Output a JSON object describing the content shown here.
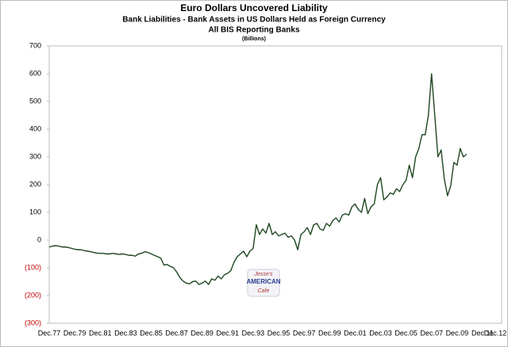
{
  "chart_data": {
    "type": "line",
    "title": "Euro Dollars Uncovered Liability",
    "subtitle": "Bank Liabilities  - Bank Assets in US Dollars Held as Foreign Currency",
    "subtitle2": "All BIS Reporting Banks",
    "units": "(Billions)",
    "watermark": [
      "Jesse's",
      "AMERICAN",
      "Cafe"
    ],
    "categories": [
      "Dec.77",
      null,
      null,
      null,
      null,
      null,
      null,
      null,
      "Dec.79",
      null,
      null,
      null,
      null,
      null,
      null,
      null,
      "Dec.81",
      null,
      null,
      null,
      null,
      null,
      null,
      null,
      "Dec.83",
      null,
      null,
      null,
      null,
      null,
      null,
      null,
      "Dec.85",
      null,
      null,
      null,
      null,
      null,
      null,
      null,
      "Dec.87",
      null,
      null,
      null,
      null,
      null,
      null,
      null,
      "Dec.89",
      null,
      null,
      null,
      null,
      null,
      null,
      null,
      "Dec.91",
      null,
      null,
      null,
      null,
      null,
      null,
      null,
      "Dec.93",
      null,
      null,
      null,
      null,
      null,
      null,
      null,
      "Dec.95",
      null,
      null,
      null,
      null,
      null,
      null,
      null,
      "Dec.97",
      null,
      null,
      null,
      null,
      null,
      null,
      null,
      "Dec.99",
      null,
      null,
      null,
      null,
      null,
      null,
      null,
      "Dec.01",
      null,
      null,
      null,
      null,
      null,
      null,
      null,
      "Dec.03",
      null,
      null,
      null,
      null,
      null,
      null,
      null,
      "Dec.05",
      null,
      null,
      null,
      null,
      null,
      null,
      null,
      "Dec.07",
      null,
      null,
      null,
      null,
      null,
      null,
      null,
      "Dec.09",
      null,
      null,
      null,
      null,
      null,
      null,
      null,
      "Dec.11",
      null,
      null,
      null,
      "Dec.12"
    ],
    "series": [
      {
        "name": "Uncovered Liability",
        "color": "#1e4620",
        "values": [
          -25,
          -22,
          -20,
          -22,
          -25,
          -25,
          -27,
          -30,
          -33,
          -35,
          -35,
          -38,
          -40,
          -42,
          -45,
          -47,
          -48,
          -48,
          -50,
          -50,
          -48,
          -50,
          -52,
          -50,
          -52,
          -55,
          -55,
          -58,
          -50,
          -48,
          -42,
          -45,
          -50,
          -55,
          -60,
          -65,
          -90,
          -88,
          -95,
          -100,
          -115,
          -135,
          -148,
          -155,
          -158,
          -150,
          -148,
          -160,
          -155,
          -148,
          -160,
          -140,
          -145,
          -130,
          -140,
          -125,
          -120,
          -110,
          -80,
          -60,
          -50,
          -40,
          -60,
          -40,
          -30,
          55,
          20,
          40,
          25,
          60,
          20,
          30,
          15,
          20,
          25,
          10,
          15,
          0,
          -35,
          20,
          30,
          45,
          20,
          55,
          60,
          40,
          35,
          60,
          50,
          70,
          80,
          65,
          90,
          95,
          90,
          120,
          130,
          110,
          100,
          150,
          95,
          120,
          130,
          200,
          225,
          145,
          155,
          170,
          165,
          185,
          175,
          200,
          215,
          270,
          225,
          300,
          330,
          380,
          380,
          450,
          600,
          450,
          300,
          325,
          220,
          160,
          195,
          280,
          270,
          330,
          300,
          310,
          null,
          null,
          null,
          null,
          null,
          null,
          null,
          null,
          null
        ]
      }
    ],
    "ylim": [
      -300,
      700
    ],
    "yticks": [
      {
        "value": -300,
        "label": "(300)"
      },
      {
        "value": -200,
        "label": "(200)"
      },
      {
        "value": -100,
        "label": "(100)"
      },
      0,
      100,
      200,
      300,
      400,
      500,
      600,
      700
    ],
    "negative_tick_color": "#c00000",
    "grid": false
  }
}
